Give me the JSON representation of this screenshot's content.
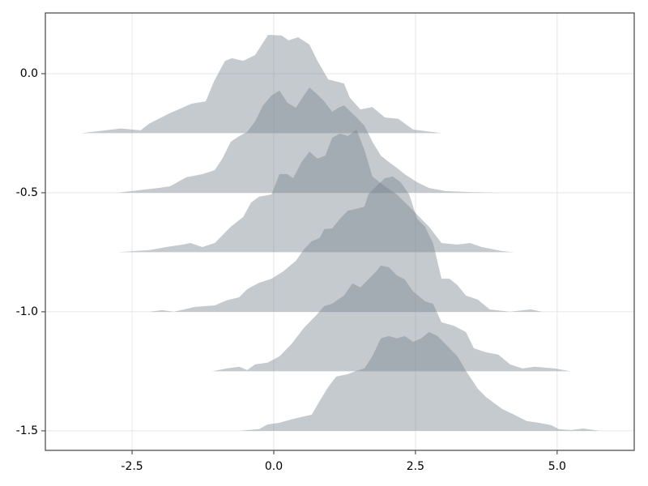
{
  "chart_data": {
    "type": "ridgeline",
    "color": "#74808c",
    "opacity": 0.42,
    "grid": true,
    "xlim": [
      -4.03,
      6.36
    ],
    "ylim": [
      -1.582,
      0.255
    ],
    "xticks": [
      -2.5,
      {
        "value": 0,
        "label": "0.0"
      },
      2.5,
      {
        "value": 5,
        "label": "5.0"
      }
    ],
    "yticks": [
      {
        "value": 0,
        "label": "0.0"
      },
      -0.5,
      {
        "value": -1,
        "label": "-1.0"
      },
      -1.5
    ],
    "series": [
      {
        "x": [
          -3.4,
          -2.7,
          -2.35,
          -2.2,
          -1.85,
          -1.45,
          -1.2,
          -1.05,
          -0.86,
          -0.74,
          -0.54,
          -0.33,
          -0.1,
          0.14,
          0.26,
          0.43,
          0.63,
          0.77,
          0.96,
          1.24,
          1.34,
          1.53,
          1.74,
          1.96,
          2.2,
          2.46,
          2.97
        ],
        "values": [
          -0.25,
          -0.23,
          -0.238,
          -0.21,
          -0.168,
          -0.126,
          -0.116,
          -0.03,
          0.054,
          0.065,
          0.054,
          0.078,
          0.163,
          0.16,
          0.14,
          0.153,
          0.122,
          0.054,
          -0.024,
          -0.041,
          -0.1,
          -0.15,
          -0.14,
          -0.184,
          -0.19,
          -0.235,
          -0.25
        ]
      },
      {
        "x": [
          -2.76,
          -2.4,
          -2.04,
          -1.83,
          -1.54,
          -1.26,
          -1.04,
          -0.9,
          -0.76,
          -0.61,
          -0.47,
          -0.33,
          -0.19,
          -0.04,
          0.1,
          0.24,
          0.39,
          0.53,
          0.63,
          0.77,
          0.89,
          1.03,
          1.14,
          1.24,
          1.34,
          1.46,
          1.6,
          1.74,
          1.89,
          2.03,
          2.17,
          2.31,
          2.53,
          2.74,
          3.03,
          3.46,
          3.96
        ],
        "values": [
          -0.5,
          -0.49,
          -0.48,
          -0.473,
          -0.435,
          -0.422,
          -0.405,
          -0.354,
          -0.286,
          -0.262,
          -0.245,
          -0.201,
          -0.133,
          -0.092,
          -0.071,
          -0.122,
          -0.143,
          -0.092,
          -0.058,
          -0.088,
          -0.116,
          -0.16,
          -0.143,
          -0.133,
          -0.156,
          -0.184,
          -0.218,
          -0.286,
          -0.344,
          -0.371,
          -0.395,
          -0.422,
          -0.456,
          -0.48,
          -0.493,
          -0.497,
          -0.5
        ]
      },
      {
        "x": [
          -2.76,
          -2.19,
          -1.9,
          -1.61,
          -1.47,
          -1.26,
          -1.04,
          -0.9,
          -0.76,
          -0.54,
          -0.4,
          -0.26,
          -0.04,
          0.1,
          0.24,
          0.34,
          0.49,
          0.63,
          0.77,
          0.91,
          1.03,
          1.17,
          1.31,
          1.46,
          1.6,
          1.74,
          1.96,
          2.17,
          2.39,
          2.53,
          2.74,
          2.96,
          3.24,
          3.46,
          3.67,
          4.03,
          4.24
        ],
        "values": [
          -0.75,
          -0.741,
          -0.728,
          -0.718,
          -0.711,
          -0.728,
          -0.711,
          -0.677,
          -0.643,
          -0.602,
          -0.541,
          -0.517,
          -0.507,
          -0.422,
          -0.422,
          -0.439,
          -0.371,
          -0.327,
          -0.357,
          -0.344,
          -0.269,
          -0.252,
          -0.262,
          -0.235,
          -0.32,
          -0.432,
          -0.473,
          -0.507,
          -0.558,
          -0.592,
          -0.643,
          -0.711,
          -0.718,
          -0.711,
          -0.728,
          -0.745,
          -0.75
        ]
      },
      {
        "x": [
          -2.19,
          -1.97,
          -1.76,
          -1.4,
          -1.04,
          -0.83,
          -0.61,
          -0.47,
          -0.26,
          -0.04,
          0.17,
          0.39,
          0.53,
          0.67,
          0.81,
          0.89,
          1.03,
          1.17,
          1.31,
          1.46,
          1.6,
          1.67,
          1.81,
          1.96,
          2.1,
          2.24,
          2.39,
          2.53,
          2.67,
          2.81,
          2.96,
          3.1,
          3.24,
          3.39,
          3.6,
          3.81,
          4.17,
          4.53,
          4.74
        ],
        "values": [
          -1.0,
          -0.993,
          -1.0,
          -0.98,
          -0.973,
          -0.952,
          -0.939,
          -0.905,
          -0.878,
          -0.861,
          -0.83,
          -0.786,
          -0.738,
          -0.704,
          -0.69,
          -0.653,
          -0.65,
          -0.609,
          -0.575,
          -0.568,
          -0.558,
          -0.507,
          -0.473,
          -0.439,
          -0.432,
          -0.456,
          -0.507,
          -0.609,
          -0.643,
          -0.711,
          -0.861,
          -0.861,
          -0.888,
          -0.932,
          -0.949,
          -0.99,
          -1.0,
          -0.99,
          -1.0
        ]
      },
      {
        "x": [
          -1.09,
          -0.83,
          -0.61,
          -0.47,
          -0.33,
          -0.11,
          0.1,
          0.31,
          0.53,
          0.74,
          0.89,
          1.03,
          1.24,
          1.39,
          1.53,
          1.67,
          1.81,
          1.89,
          2.03,
          2.17,
          2.31,
          2.46,
          2.67,
          2.81,
          2.96,
          3.17,
          3.39,
          3.53,
          3.74,
          3.96,
          4.17,
          4.39,
          4.6,
          4.96,
          5.24
        ],
        "values": [
          -1.25,
          -1.238,
          -1.231,
          -1.245,
          -1.221,
          -1.214,
          -1.187,
          -1.136,
          -1.068,
          -1.017,
          -0.976,
          -0.966,
          -0.932,
          -0.881,
          -0.898,
          -0.864,
          -0.83,
          -0.806,
          -0.813,
          -0.847,
          -0.864,
          -0.915,
          -0.956,
          -0.966,
          -1.044,
          -1.058,
          -1.085,
          -1.153,
          -1.17,
          -1.18,
          -1.221,
          -1.238,
          -1.231,
          -1.238,
          -1.25
        ]
      },
      {
        "x": [
          -0.61,
          -0.26,
          -0.11,
          0.1,
          0.31,
          0.49,
          0.67,
          0.81,
          0.96,
          1.1,
          1.31,
          1.46,
          1.6,
          1.74,
          1.89,
          2.03,
          2.17,
          2.31,
          2.46,
          2.6,
          2.74,
          2.89,
          3.03,
          3.24,
          3.39,
          3.6,
          3.74,
          3.89,
          4.03,
          4.24,
          4.46,
          4.67,
          4.89,
          5.03,
          5.24,
          5.46,
          5.74
        ],
        "values": [
          -1.5,
          -1.493,
          -1.473,
          -1.466,
          -1.452,
          -1.442,
          -1.432,
          -1.374,
          -1.316,
          -1.272,
          -1.262,
          -1.248,
          -1.238,
          -1.187,
          -1.112,
          -1.102,
          -1.112,
          -1.102,
          -1.126,
          -1.112,
          -1.085,
          -1.102,
          -1.136,
          -1.187,
          -1.248,
          -1.323,
          -1.357,
          -1.384,
          -1.408,
          -1.432,
          -1.459,
          -1.466,
          -1.476,
          -1.493,
          -1.497,
          -1.49,
          -1.5
        ]
      }
    ]
  }
}
